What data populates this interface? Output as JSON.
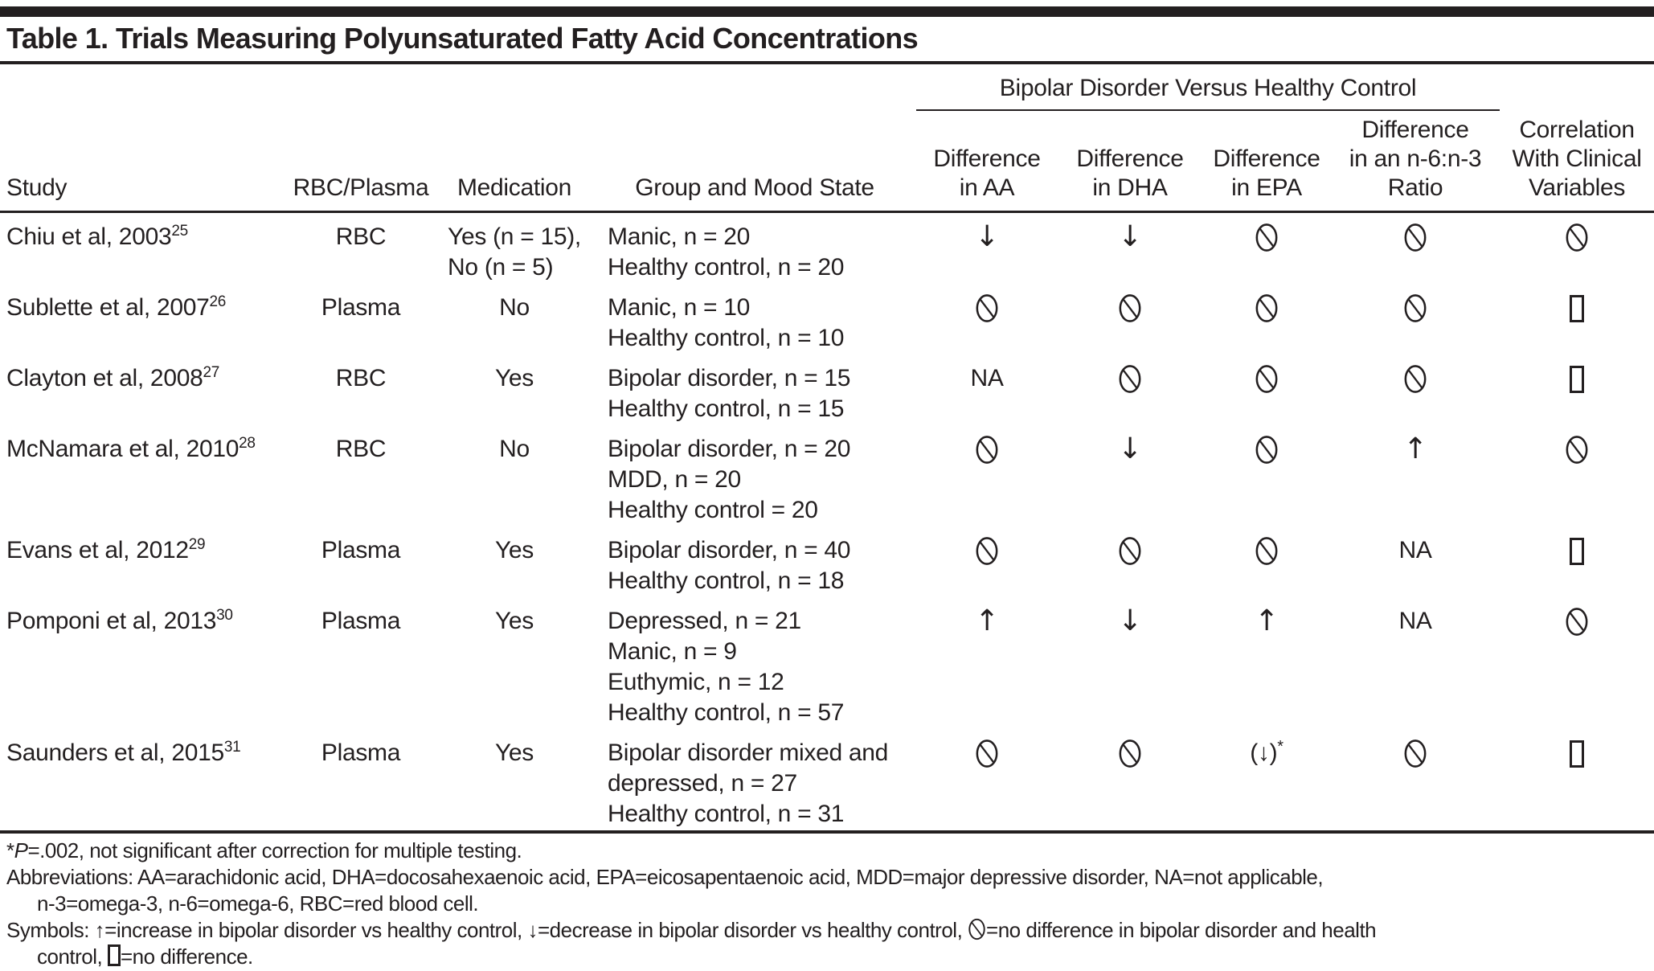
{
  "title": "Table 1. Trials Measuring Polyunsaturated Fatty Acid Concentrations",
  "headers": {
    "spanner": "Bipolar Disorder Versus Healthy Control",
    "study": "Study",
    "sample": "RBC/Plasma",
    "medication": "Medication",
    "group": "Group and Mood State",
    "aa": [
      "Difference",
      "in AA"
    ],
    "dha": [
      "Difference",
      "in DHA"
    ],
    "epa": [
      "Difference",
      "in EPA"
    ],
    "ratio": [
      "Difference",
      "in an n-6:n-3",
      "Ratio"
    ],
    "corr": [
      "Correlation",
      "With Clinical",
      "Variables"
    ]
  },
  "rows": [
    {
      "study": "Chiu et al, 2003",
      "ref": "25",
      "sample": "RBC",
      "medication": [
        "Yes (n = 15),",
        "No (n = 5)"
      ],
      "group": [
        "Manic, n = 20",
        "Healthy control, n = 20"
      ],
      "aa": "down",
      "dha": "down",
      "epa": "nodiff",
      "ratio": "nodiff",
      "corr": "nodiff"
    },
    {
      "study": "Sublette et al, 2007",
      "ref": "26",
      "sample": "Plasma",
      "medication": [
        "No"
      ],
      "group": [
        "Manic, n = 10",
        "Healthy control, n = 10"
      ],
      "aa": "nodiff",
      "dha": "nodiff",
      "epa": "nodiff",
      "ratio": "nodiff",
      "corr": "box"
    },
    {
      "study": "Clayton et al, 2008",
      "ref": "27",
      "sample": "RBC",
      "medication": [
        "Yes"
      ],
      "group": [
        "Bipolar disorder, n = 15",
        "Healthy control, n = 15"
      ],
      "aa": "na",
      "dha": "nodiff",
      "epa": "nodiff",
      "ratio": "nodiff",
      "corr": "box"
    },
    {
      "study": "McNamara et al, 2010",
      "ref": "28",
      "sample": "RBC",
      "medication": [
        "No"
      ],
      "group": [
        "Bipolar disorder, n = 20",
        "MDD, n = 20",
        "Healthy control = 20"
      ],
      "aa": "nodiff",
      "dha": "down",
      "epa": "nodiff",
      "ratio": "up",
      "corr": "nodiff"
    },
    {
      "study": "Evans et al, 2012",
      "ref": "29",
      "sample": "Plasma",
      "medication": [
        "Yes"
      ],
      "group": [
        "Bipolar disorder, n = 40",
        "Healthy control, n = 18"
      ],
      "aa": "nodiff",
      "dha": "nodiff",
      "epa": "nodiff",
      "ratio": "na",
      "corr": "box"
    },
    {
      "study": "Pomponi et al, 2013",
      "ref": "30",
      "sample": "Plasma",
      "medication": [
        "Yes"
      ],
      "group": [
        "Depressed, n = 21",
        "Manic, n = 9",
        "Euthymic, n = 12",
        "Healthy control, n = 57"
      ],
      "aa": "up",
      "dha": "down",
      "epa": "up",
      "ratio": "na",
      "corr": "nodiff"
    },
    {
      "study": "Saunders et al, 2015",
      "ref": "31",
      "sample": "Plasma",
      "medication": [
        "Yes"
      ],
      "group": [
        "Bipolar disorder mixed and",
        "depressed, n = 27",
        "Healthy control, n = 31"
      ],
      "aa": "nodiff",
      "dha": "nodiff",
      "epa": "down-paren-star",
      "ratio": "nodiff",
      "corr": "box"
    }
  ],
  "footnotes": {
    "star_prefix": "*",
    "star_italic": "P",
    "star_rest": "=.002, not significant after correction for multiple testing.",
    "abbrev_line1": "Abbreviations: AA=arachidonic acid, DHA=docosahexaenoic acid, EPA=eicosapentaenoic acid, MDD=major depressive disorder, NA=not applicable,",
    "abbrev_line2": "n-3=omega-3, n-6=omega-6, RBC=red blood cell.",
    "symbols_seg1": "Symbols: ↑=increase in bipolar disorder vs healthy control, ↓=decrease in bipolar disorder vs healthy control, ",
    "symbols_icon1": "nodiff",
    "symbols_seg2": "=no difference in bipolar disorder and health",
    "symbols2_pre": "control, ",
    "symbols_icon2": "box",
    "symbols2_post": "=no difference."
  },
  "colors": {
    "ink": "#231f20",
    "background": "#ffffff"
  }
}
